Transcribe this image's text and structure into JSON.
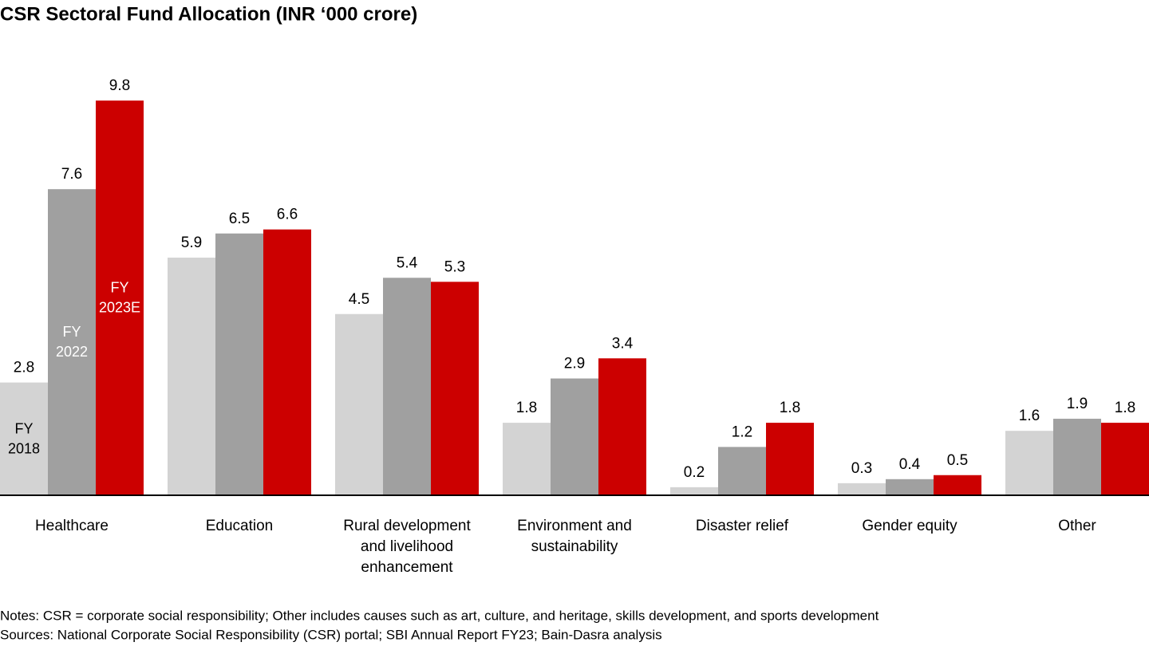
{
  "chart_data": {
    "type": "bar",
    "title": "CSR Sectoral Fund Allocation (INR ‘000 crore)",
    "categories": [
      "Healthcare",
      "Education",
      "Rural development\nand livelihood\nenhancement",
      "Environment and\nsustainability",
      "Disaster relief",
      "Gender equity",
      "Other"
    ],
    "series": [
      {
        "name": "FY 2018",
        "color": "#d3d3d3",
        "values": [
          2.8,
          5.9,
          4.5,
          1.8,
          0.2,
          0.3,
          1.6
        ]
      },
      {
        "name": "FY 2022",
        "color": "#a0a0a0",
        "values": [
          7.6,
          6.5,
          5.4,
          2.9,
          1.2,
          0.4,
          1.9
        ]
      },
      {
        "name": "FY 2023E",
        "color": "#cc0000",
        "values": [
          9.8,
          6.6,
          5.3,
          3.4,
          1.8,
          0.5,
          1.8
        ]
      }
    ],
    "ylim": [
      0,
      10
    ],
    "notes": [
      "Notes: CSR = corporate social responsibility; Other includes causes such as art, culture, and heritage, skills development, and sports development",
      "Sources: National Corporate Social Responsibility (CSR) portal; SBI Annual Report FY23; Bain-Dasra analysis"
    ]
  }
}
